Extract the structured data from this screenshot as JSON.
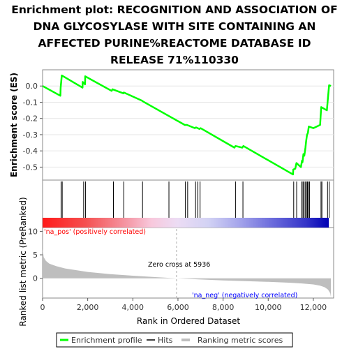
{
  "title_lines": [
    "Enrichment plot: RECOGNITION AND ASSOCIATION OF",
    "DNA GLYCOSYLASE WITH SITE CONTAINING AN",
    "AFFECTED PURINE%REACTOME DATABASE ID",
    "RELEASE 71%110330"
  ],
  "colors": {
    "profile": "#00ff00",
    "hits": "#000000",
    "ranking_fill": "#bebebe",
    "pos_label": "#ff0000",
    "neg_label": "#0000ff",
    "zero_cross_line": "#bebebe"
  },
  "labels": {
    "es_ylabel": "Enrichment score (ES)",
    "metric_ylabel": "Ranked list metric (PreRanked)",
    "xlabel": "Rank in Ordered Dataset",
    "pos": "'na_pos' (positively correlated)",
    "neg": "'na_neg' (negatively correlated)",
    "zero_cross": "Zero cross at 5936"
  },
  "legend": {
    "items": [
      "Enrichment profile",
      "Hits",
      "Ranking metric scores"
    ]
  },
  "chart_data": [
    {
      "type": "line",
      "name": "Enrichment profile",
      "ylabel": "Enrichment score (ES)",
      "xlim": [
        0,
        12900
      ],
      "ylim": [
        -0.58,
        0.1
      ],
      "yticks": [
        0.0,
        -0.1,
        -0.2,
        -0.3,
        -0.4,
        -0.5
      ],
      "ytick_labels": [
        "0.0",
        "-0.1",
        "-0.2",
        "-0.3",
        "-0.4",
        "-0.5"
      ],
      "x": [
        0,
        790,
        800,
        850,
        1770,
        1780,
        1880,
        1890,
        3060,
        3100,
        3580,
        3600,
        4400,
        4450,
        6300,
        6400,
        6750,
        6800,
        6950,
        7000,
        8500,
        8550,
        8850,
        8900,
        11100,
        11110,
        11200,
        11250,
        11450,
        11500,
        11520,
        11560,
        11600,
        11650,
        11680,
        11720,
        11760,
        11800,
        12000,
        12300,
        12320,
        12350,
        12600,
        12650,
        12700,
        12780
      ],
      "y": [
        0.0,
        -0.06,
        -0.01,
        0.065,
        -0.01,
        0.025,
        0.01,
        0.06,
        -0.03,
        -0.02,
        -0.045,
        -0.04,
        -0.09,
        -0.095,
        -0.24,
        -0.24,
        -0.26,
        -0.255,
        -0.265,
        -0.26,
        -0.38,
        -0.37,
        -0.38,
        -0.37,
        -0.545,
        -0.515,
        -0.51,
        -0.475,
        -0.5,
        -0.46,
        -0.47,
        -0.42,
        -0.43,
        -0.38,
        -0.34,
        -0.3,
        -0.29,
        -0.25,
        -0.26,
        -0.24,
        -0.19,
        -0.13,
        -0.15,
        -0.07,
        0.005,
        0.0
      ]
    },
    {
      "type": "scatter",
      "name": "Hits",
      "x": [
        820,
        870,
        1820,
        1900,
        3140,
        3600,
        4430,
        5600,
        6330,
        6430,
        6780,
        6880,
        6980,
        8550,
        8880,
        11130,
        11260,
        11480,
        11540,
        11580,
        11640,
        11700,
        11740,
        11790,
        11830,
        12340,
        12380,
        12630,
        12700
      ]
    },
    {
      "type": "area",
      "name": "Ranking metric scores",
      "ylabel": "Ranked list metric (PreRanked)",
      "xlabel": "Rank in Ordered Dataset",
      "xlim": [
        0,
        12900
      ],
      "ylim": [
        -4.2,
        10.8
      ],
      "xticks": [
        0,
        2000,
        4000,
        6000,
        8000,
        10000,
        12000
      ],
      "xtick_labels": [
        "0",
        "2,000",
        "4,000",
        "6,000",
        "8,000",
        "10,000",
        "12,000"
      ],
      "yticks": [
        10,
        5,
        0
      ],
      "ytick_labels": [
        "10",
        "5",
        "0"
      ],
      "x": [
        0,
        50,
        150,
        300,
        600,
        1000,
        2000,
        3000,
        4000,
        5000,
        5936,
        7000,
        8000,
        9000,
        10000,
        11000,
        11500,
        12000,
        12300,
        12500,
        12650,
        12750,
        12780
      ],
      "y": [
        6.3,
        4.5,
        3.7,
        3.1,
        2.6,
        2.1,
        1.35,
        0.9,
        0.55,
        0.25,
        0.0,
        -0.25,
        -0.45,
        -0.6,
        -0.75,
        -0.95,
        -1.1,
        -1.3,
        -1.55,
        -1.9,
        -2.4,
        -3.2,
        -4.0
      ],
      "zero_cross": 5936
    }
  ]
}
